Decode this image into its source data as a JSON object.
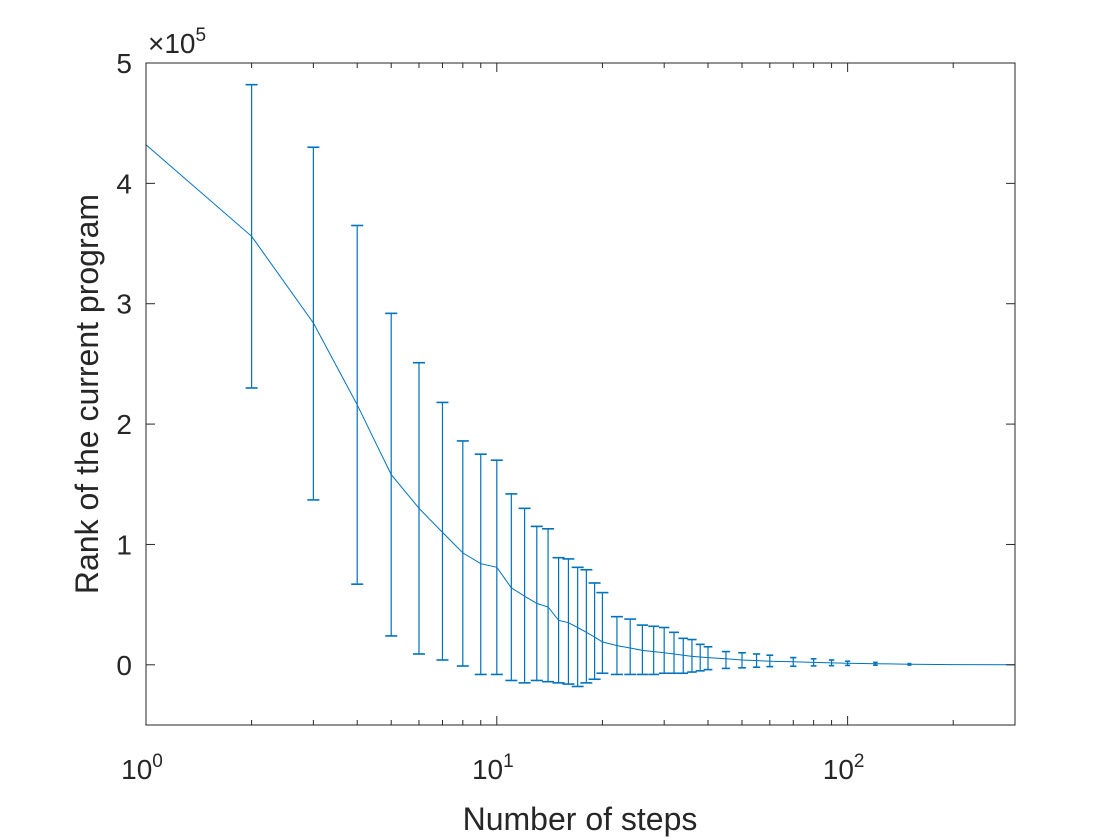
{
  "chart_data": {
    "type": "line",
    "title": "",
    "xlabel": "Number of steps",
    "ylabel": "Rank of the current program",
    "x_scale": "log",
    "xlim": [
      1,
      300
    ],
    "ylim": [
      -50000,
      500000
    ],
    "y_exponent_label": "×10",
    "y_exponent_power": "5",
    "x_ticks": [
      {
        "value": 1,
        "base": "10",
        "power": "0"
      },
      {
        "value": 10,
        "base": "10",
        "power": "1"
      },
      {
        "value": 100,
        "base": "10",
        "power": "2"
      }
    ],
    "y_ticks": [
      {
        "value": 0,
        "label": "0"
      },
      {
        "value": 100000,
        "label": "1"
      },
      {
        "value": 200000,
        "label": "2"
      },
      {
        "value": 300000,
        "label": "3"
      },
      {
        "value": 400000,
        "label": "4"
      },
      {
        "value": 500000,
        "label": "5"
      }
    ],
    "grid": false,
    "color": "#0072BD",
    "series": [
      {
        "x": [
          1,
          2,
          3,
          4,
          5,
          6,
          7,
          8,
          9,
          10,
          11,
          12,
          13,
          14,
          15,
          16,
          17,
          18,
          19,
          20,
          22,
          24,
          26,
          28,
          30,
          32,
          34,
          36,
          38,
          40,
          45,
          50,
          55,
          60,
          70,
          80,
          90,
          100,
          120,
          150,
          200,
          300
        ],
        "y": [
          432000,
          356000,
          284000,
          216000,
          158000,
          130000,
          110000,
          93000,
          84000,
          81000,
          64000,
          57000,
          51000,
          48000,
          37000,
          35000,
          31000,
          27000,
          23000,
          19000,
          16000,
          14000,
          12000,
          11000,
          10000,
          9000,
          8000,
          7000,
          6500,
          6000,
          5000,
          4000,
          3500,
          3000,
          2500,
          2000,
          1600,
          1300,
          900,
          500,
          200,
          0
        ],
        "error_low": [
          null,
          230000,
          137000,
          67000,
          24000,
          9000,
          4000,
          -1000,
          -8000,
          -8000,
          -13000,
          -15000,
          -13000,
          -14000,
          -15000,
          -16000,
          -18000,
          -15000,
          -12000,
          -7000,
          -8000,
          -8000,
          -8000,
          -8000,
          -7000,
          -7000,
          -7000,
          -6000,
          -5000,
          -4000,
          -3000,
          -2500,
          -2000,
          -1500,
          -1200,
          -900,
          -700,
          -500,
          -300,
          -200,
          null,
          null
        ],
        "error_high": [
          null,
          482000,
          430000,
          365000,
          292000,
          251000,
          218000,
          186000,
          175000,
          170000,
          142000,
          130000,
          115000,
          113000,
          89000,
          88000,
          81000,
          79000,
          68000,
          60000,
          40000,
          38000,
          33000,
          32000,
          31000,
          27000,
          22000,
          21000,
          17000,
          15000,
          11000,
          10000,
          9000,
          8000,
          6000,
          5000,
          4000,
          3000,
          2000,
          1000,
          null,
          null
        ]
      }
    ]
  }
}
